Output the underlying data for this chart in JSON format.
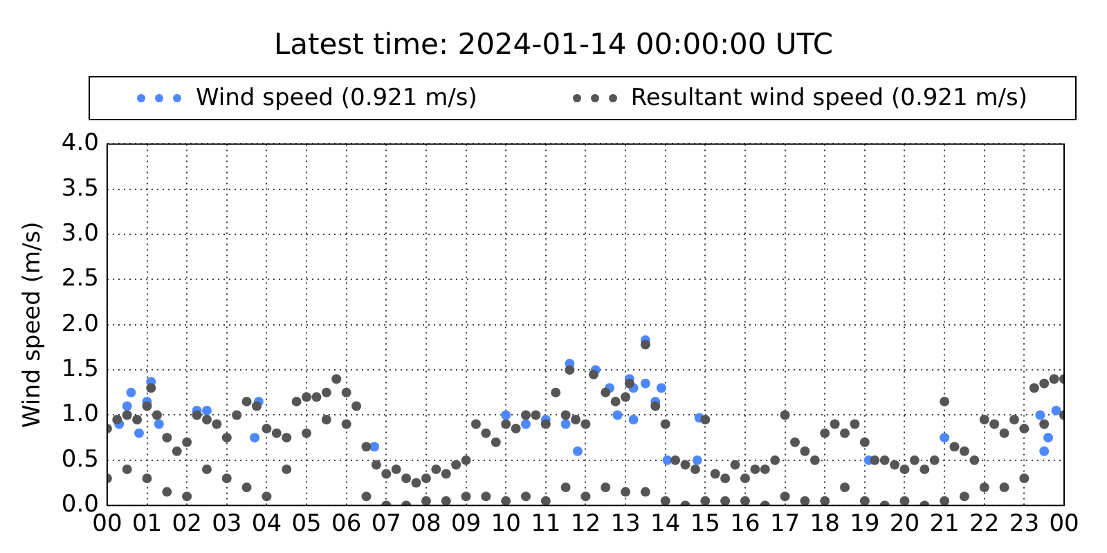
{
  "chart_data": {
    "type": "scatter",
    "title": "Latest time: 2024-01-14 00:00:00 UTC",
    "ylabel": "Wind speed (m/s)",
    "xlim": [
      0,
      24
    ],
    "xticks": [
      {
        "value": 0,
        "label": "00"
      },
      {
        "value": 1,
        "label": "01"
      },
      {
        "value": 2,
        "label": "02"
      },
      {
        "value": 3,
        "label": "03"
      },
      {
        "value": 4,
        "label": "04"
      },
      {
        "value": 5,
        "label": "05"
      },
      {
        "value": 6,
        "label": "06"
      },
      {
        "value": 7,
        "label": "07"
      },
      {
        "value": 8,
        "label": "08"
      },
      {
        "value": 9,
        "label": "09"
      },
      {
        "value": 10,
        "label": "10"
      },
      {
        "value": 11,
        "label": "11"
      },
      {
        "value": 12,
        "label": "12"
      },
      {
        "value": 13,
        "label": "13"
      },
      {
        "value": 14,
        "label": "14"
      },
      {
        "value": 15,
        "label": "15"
      },
      {
        "value": 16,
        "label": "16"
      },
      {
        "value": 17,
        "label": "17"
      },
      {
        "value": 18,
        "label": "18"
      },
      {
        "value": 19,
        "label": "19"
      },
      {
        "value": 20,
        "label": "20"
      },
      {
        "value": 21,
        "label": "21"
      },
      {
        "value": 22,
        "label": "22"
      },
      {
        "value": 23,
        "label": "23"
      },
      {
        "value": 24,
        "label": "00"
      }
    ],
    "ylim": [
      0,
      4
    ],
    "yticks": [
      {
        "value": 0,
        "label": "0.0"
      },
      {
        "value": 0.5,
        "label": "0.5"
      },
      {
        "value": 1,
        "label": "1.0"
      },
      {
        "value": 1.5,
        "label": "1.5"
      },
      {
        "value": 2,
        "label": "2.0"
      },
      {
        "value": 2.5,
        "label": "2.5"
      },
      {
        "value": 3,
        "label": "3.0"
      },
      {
        "value": 3.5,
        "label": "3.5"
      },
      {
        "value": 4,
        "label": "4.0"
      }
    ],
    "grid": true,
    "legend": "top",
    "marker": "circle",
    "series": [
      {
        "name": "Wind speed (0.921 m/s)",
        "color": "#4d88ff",
        "x": [
          0.3,
          0.5,
          0.6,
          0.8,
          1.0,
          1.1,
          1.3,
          2.25,
          2.5,
          3.7,
          3.8,
          6.7,
          10.0,
          10.5,
          11.0,
          11.5,
          11.6,
          11.8,
          12.25,
          12.6,
          12.8,
          13.1,
          13.2,
          13.2,
          13.5,
          13.5,
          13.75,
          13.9,
          14.05,
          14.8,
          14.85,
          19.1,
          21.0,
          23.4,
          23.5,
          23.6,
          23.8
        ],
        "values": [
          0.9,
          1.1,
          1.25,
          0.8,
          1.15,
          1.37,
          0.9,
          1.05,
          1.05,
          0.75,
          1.15,
          0.65,
          1.0,
          0.9,
          0.95,
          0.9,
          1.57,
          0.6,
          1.5,
          1.3,
          1.0,
          1.4,
          1.3,
          0.95,
          1.83,
          1.35,
          1.15,
          1.3,
          0.5,
          0.5,
          0.97,
          0.5,
          0.75,
          1.0,
          0.6,
          0.75,
          1.05
        ]
      },
      {
        "name": "Resultant wind speed (0.921 m/s)",
        "color": "#555555",
        "x": [
          0,
          0.25,
          0.5,
          0.75,
          1,
          1.1,
          1.25,
          1.5,
          1.75,
          2,
          2.25,
          2.5,
          2.75,
          3,
          3.25,
          3.5,
          3.75,
          4,
          4.25,
          4.5,
          4.75,
          5,
          5.25,
          5.5,
          5.75,
          6,
          6.25,
          6.5,
          6.75,
          7,
          7.25,
          7.5,
          7.75,
          8,
          8.25,
          8.5,
          8.75,
          9,
          9.25,
          9.5,
          9.75,
          10,
          10.25,
          10.5,
          10.75,
          11,
          11.25,
          11.5,
          11.6,
          11.75,
          12,
          12.2,
          12.5,
          12.75,
          13,
          13.1,
          13.5,
          13.75,
          14,
          14.25,
          14.5,
          14.75,
          15,
          15.25,
          15.5,
          15.75,
          16,
          16.25,
          16.5,
          16.75,
          17,
          17.25,
          17.5,
          17.75,
          18,
          18.25,
          18.5,
          18.75,
          19,
          19.25,
          19.5,
          19.75,
          20,
          20.25,
          20.5,
          20.75,
          21,
          21.25,
          21.5,
          21.75,
          22,
          22.25,
          22.5,
          22.75,
          23,
          23.25,
          23.5,
          23.75,
          24,
          0,
          0.5,
          1,
          1.5,
          2,
          2.5,
          3,
          3.5,
          4,
          4.5,
          5,
          5.5,
          6,
          6.5,
          7,
          7.5,
          8,
          8.5,
          9,
          9.5,
          10,
          10.5,
          11,
          11.5,
          12,
          12.5,
          13,
          13.5,
          14,
          14.5,
          15,
          15.5,
          16,
          16.5,
          17,
          17.5,
          18,
          18.5,
          19,
          19.5,
          20,
          20.5,
          21,
          21.5,
          22,
          22.5,
          23,
          23.5,
          24
        ],
        "values": [
          0.85,
          0.95,
          1.0,
          0.95,
          1.1,
          1.3,
          1.0,
          0.75,
          0.6,
          0.7,
          1.0,
          0.95,
          0.9,
          0.75,
          1.0,
          1.15,
          1.1,
          0.85,
          0.8,
          0.75,
          1.15,
          1.2,
          1.2,
          1.25,
          1.4,
          1.25,
          1.1,
          0.65,
          0.45,
          0.35,
          0.4,
          0.3,
          0.25,
          0.3,
          0.4,
          0.35,
          0.45,
          0.5,
          0.9,
          0.8,
          0.7,
          0.9,
          0.85,
          1.0,
          1.0,
          0.9,
          1.25,
          1.0,
          1.5,
          0.95,
          0.9,
          1.45,
          1.25,
          1.15,
          1.2,
          1.35,
          1.78,
          1.1,
          0.9,
          0.5,
          0.45,
          0.4,
          0.95,
          0.35,
          0.3,
          0.45,
          0.3,
          0.4,
          0.4,
          0.5,
          1.0,
          0.7,
          0.6,
          0.5,
          0.8,
          0.9,
          0.8,
          0.9,
          0.7,
          0.5,
          0.5,
          0.45,
          0.4,
          0.5,
          0.4,
          0.5,
          1.15,
          0.65,
          0.6,
          0.5,
          0.95,
          0.9,
          0.8,
          0.95,
          0.85,
          1.3,
          1.35,
          1.4,
          1.4,
          0.3,
          0.4,
          0.3,
          0.15,
          0.1,
          0.4,
          0.3,
          0.2,
          0.1,
          0.4,
          0.8,
          0.95,
          0.9,
          0.1,
          0.0,
          0.0,
          0.05,
          0.05,
          0.1,
          0.1,
          0.05,
          0.1,
          0.05,
          0.2,
          0.1,
          0.2,
          0.15,
          0.15,
          0.05,
          0.0,
          0.05,
          0.05,
          0.05,
          0.0,
          0.1,
          0.05,
          0.05,
          0.2,
          0.05,
          0.0,
          0.05,
          0.0,
          0.05,
          0.1,
          0.2,
          0.2,
          0.3,
          0.9,
          1.0
        ]
      }
    ]
  }
}
